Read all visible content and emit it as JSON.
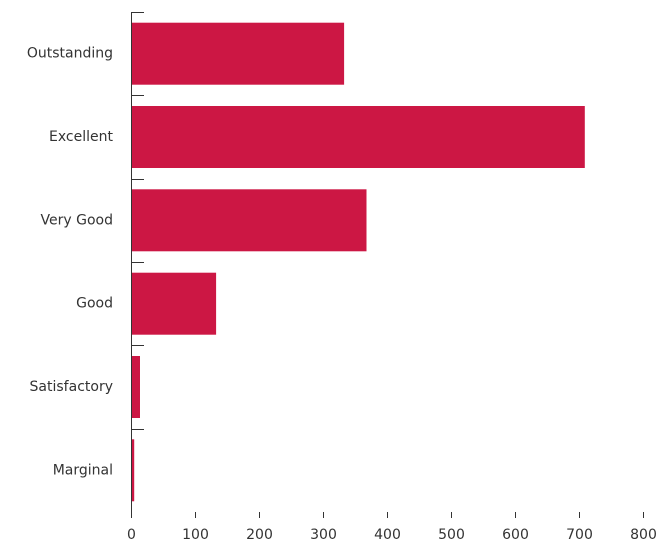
{
  "chart_data": {
    "type": "bar",
    "orientation": "horizontal",
    "categories": [
      "Outstanding",
      "Excellent",
      "Very Good",
      "Good",
      "Satisfactory",
      "Marginal"
    ],
    "values": [
      333,
      709,
      368,
      133,
      14,
      5
    ],
    "xlim": [
      0,
      800
    ],
    "x_ticks": [
      "0",
      "100",
      "200",
      "300",
      "400",
      "500",
      "600",
      "700",
      "800"
    ],
    "grid": false,
    "legend": "none",
    "bar_color": "#cc1744",
    "title": "",
    "xlabel": "",
    "ylabel": ""
  }
}
